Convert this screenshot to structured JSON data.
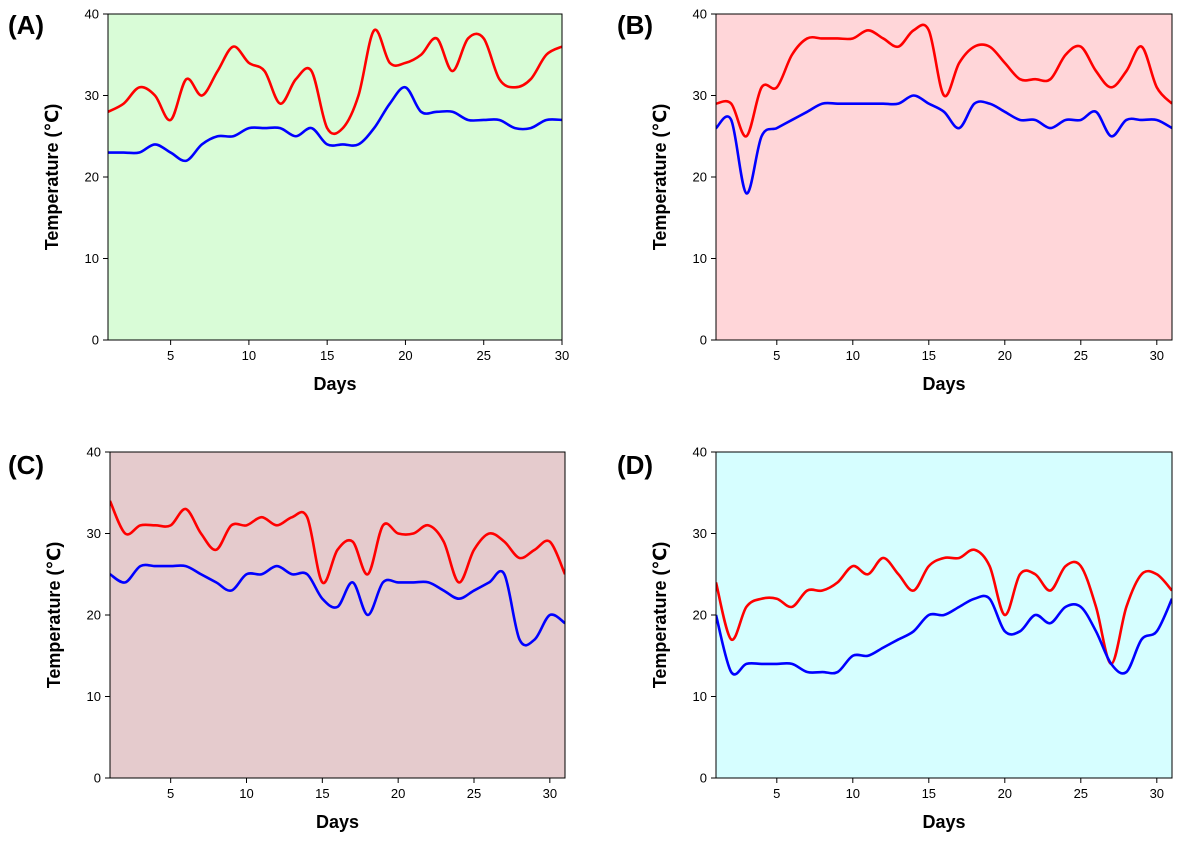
{
  "panels": [
    {
      "label": "(A)",
      "background": "#d9fcd7"
    },
    {
      "label": "(B)",
      "background": "#ffd6d9"
    },
    {
      "label": "(C)",
      "background": "#e5cbcd"
    },
    {
      "label": "(D)",
      "background": "#d6feff"
    }
  ],
  "chart_data": [
    {
      "type": "line",
      "panel": "(A)",
      "xlabel": "Days",
      "ylabel": "Temperature (℃)",
      "xlim": [
        1,
        30
      ],
      "ylim": [
        0,
        40
      ],
      "xticks": [
        5,
        10,
        15,
        20,
        25,
        30
      ],
      "yticks": [
        0,
        10,
        20,
        30,
        40
      ],
      "background": "#d9fcd7",
      "series": [
        {
          "color": "#ff0000",
          "x": [
            1,
            2,
            3,
            4,
            5,
            6,
            7,
            8,
            9,
            10,
            11,
            12,
            13,
            14,
            15,
            16,
            17,
            18,
            19,
            20,
            21,
            22,
            23,
            24,
            25,
            26,
            27,
            28,
            29,
            30
          ],
          "y": [
            28,
            29,
            31,
            30,
            27,
            32,
            30,
            33,
            36,
            34,
            33,
            29,
            32,
            33,
            26,
            26,
            30,
            38,
            34,
            34,
            35,
            37,
            33,
            37,
            37,
            32,
            31,
            32,
            35,
            36
          ]
        },
        {
          "color": "#0000ff",
          "x": [
            1,
            2,
            3,
            4,
            5,
            6,
            7,
            8,
            9,
            10,
            11,
            12,
            13,
            14,
            15,
            16,
            17,
            18,
            19,
            20,
            21,
            22,
            23,
            24,
            25,
            26,
            27,
            28,
            29,
            30
          ],
          "y": [
            23,
            23,
            23,
            24,
            23,
            22,
            24,
            25,
            25,
            26,
            26,
            26,
            25,
            26,
            24,
            24,
            24,
            26,
            29,
            31,
            28,
            28,
            28,
            27,
            27,
            27,
            26,
            26,
            27,
            27
          ]
        }
      ]
    },
    {
      "type": "line",
      "panel": "(B)",
      "xlabel": "Days",
      "ylabel": "Temperature (℃)",
      "xlim": [
        1,
        31
      ],
      "ylim": [
        0,
        40
      ],
      "xticks": [
        5,
        10,
        15,
        20,
        25,
        30
      ],
      "yticks": [
        0,
        10,
        20,
        30,
        40
      ],
      "background": "#ffd6d9",
      "series": [
        {
          "color": "#ff0000",
          "x": [
            1,
            2,
            3,
            4,
            5,
            6,
            7,
            8,
            9,
            10,
            11,
            12,
            13,
            14,
            15,
            16,
            17,
            18,
            19,
            20,
            21,
            22,
            23,
            24,
            25,
            26,
            27,
            28,
            29,
            30,
            31
          ],
          "y": [
            29,
            29,
            25,
            31,
            31,
            35,
            37,
            37,
            37,
            37,
            38,
            37,
            36,
            38,
            38,
            30,
            34,
            36,
            36,
            34,
            32,
            32,
            32,
            35,
            36,
            33,
            31,
            33,
            36,
            31,
            29
          ]
        },
        {
          "color": "#0000ff",
          "x": [
            1,
            2,
            3,
            4,
            5,
            6,
            7,
            8,
            9,
            10,
            11,
            12,
            13,
            14,
            15,
            16,
            17,
            18,
            19,
            20,
            21,
            22,
            23,
            24,
            25,
            26,
            27,
            28,
            29,
            30,
            31
          ],
          "y": [
            26,
            27,
            18,
            25,
            26,
            27,
            28,
            29,
            29,
            29,
            29,
            29,
            29,
            30,
            29,
            28,
            26,
            29,
            29,
            28,
            27,
            27,
            26,
            27,
            27,
            28,
            25,
            27,
            27,
            27,
            26
          ]
        }
      ]
    },
    {
      "type": "line",
      "panel": "(C)",
      "xlabel": "Days",
      "ylabel": "Temperature (℃)",
      "xlim": [
        1,
        31
      ],
      "ylim": [
        0,
        40
      ],
      "xticks": [
        5,
        10,
        15,
        20,
        25,
        30
      ],
      "yticks": [
        0,
        10,
        20,
        30,
        40
      ],
      "background": "#e5cbcd",
      "series": [
        {
          "color": "#ff0000",
          "x": [
            1,
            2,
            3,
            4,
            5,
            6,
            7,
            8,
            9,
            10,
            11,
            12,
            13,
            14,
            15,
            16,
            17,
            18,
            19,
            20,
            21,
            22,
            23,
            24,
            25,
            26,
            27,
            28,
            29,
            30,
            31
          ],
          "y": [
            34,
            30,
            31,
            31,
            31,
            33,
            30,
            28,
            31,
            31,
            32,
            31,
            32,
            32,
            24,
            28,
            29,
            25,
            31,
            30,
            30,
            31,
            29,
            24,
            28,
            30,
            29,
            27,
            28,
            29,
            25
          ]
        },
        {
          "color": "#0000ff",
          "x": [
            1,
            2,
            3,
            4,
            5,
            6,
            7,
            8,
            9,
            10,
            11,
            12,
            13,
            14,
            15,
            16,
            17,
            18,
            19,
            20,
            21,
            22,
            23,
            24,
            25,
            26,
            27,
            28,
            29,
            30,
            31
          ],
          "y": [
            25,
            24,
            26,
            26,
            26,
            26,
            25,
            24,
            23,
            25,
            25,
            26,
            25,
            25,
            22,
            21,
            24,
            20,
            24,
            24,
            24,
            24,
            23,
            22,
            23,
            24,
            25,
            17,
            17,
            20,
            19
          ]
        }
      ]
    },
    {
      "type": "line",
      "panel": "(D)",
      "xlabel": "Days",
      "ylabel": "Temperature (℃)",
      "xlim": [
        1,
        31
      ],
      "ylim": [
        0,
        40
      ],
      "xticks": [
        5,
        10,
        15,
        20,
        25,
        30
      ],
      "yticks": [
        0,
        10,
        20,
        30,
        40
      ],
      "background": "#d6feff",
      "series": [
        {
          "color": "#ff0000",
          "x": [
            1,
            2,
            3,
            4,
            5,
            6,
            7,
            8,
            9,
            10,
            11,
            12,
            13,
            14,
            15,
            16,
            17,
            18,
            19,
            20,
            21,
            22,
            23,
            24,
            25,
            26,
            27,
            28,
            29,
            30,
            31
          ],
          "y": [
            24,
            17,
            21,
            22,
            22,
            21,
            23,
            23,
            24,
            26,
            25,
            27,
            25,
            23,
            26,
            27,
            27,
            28,
            26,
            20,
            25,
            25,
            23,
            26,
            26,
            21,
            14,
            21,
            25,
            25,
            23
          ]
        },
        {
          "color": "#0000ff",
          "x": [
            1,
            2,
            3,
            4,
            5,
            6,
            7,
            8,
            9,
            10,
            11,
            12,
            13,
            14,
            15,
            16,
            17,
            18,
            19,
            20,
            21,
            22,
            23,
            24,
            25,
            26,
            27,
            28,
            29,
            30,
            31
          ],
          "y": [
            20,
            13,
            14,
            14,
            14,
            14,
            13,
            13,
            13,
            15,
            15,
            16,
            17,
            18,
            20,
            20,
            21,
            22,
            22,
            18,
            18,
            20,
            19,
            21,
            21,
            18,
            14,
            13,
            17,
            18,
            22
          ]
        }
      ]
    }
  ]
}
